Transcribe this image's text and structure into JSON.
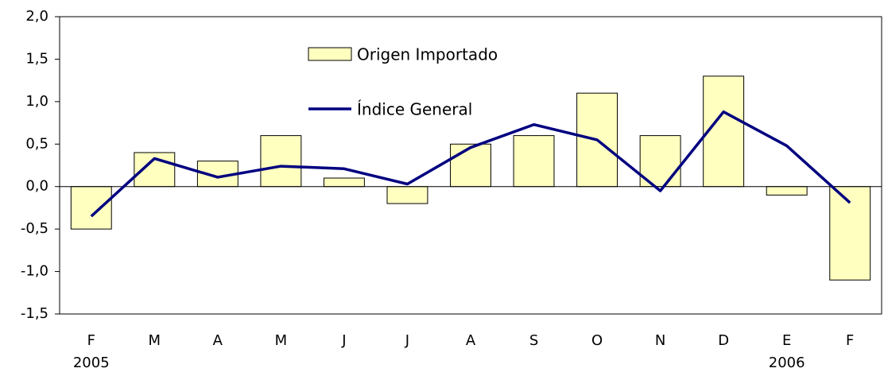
{
  "chart_data": {
    "type": "bar",
    "categories": [
      "F",
      "M",
      "A",
      "M",
      "J",
      "J",
      "A",
      "S",
      "O",
      "N",
      "D",
      "E",
      "F"
    ],
    "categories_level2": [
      "2005",
      null,
      null,
      null,
      null,
      null,
      null,
      null,
      null,
      null,
      null,
      "2006",
      null
    ],
    "series": [
      {
        "name": "Origen Importado",
        "type": "bar",
        "color": "#ffffc0",
        "values": [
          -0.5,
          0.4,
          0.3,
          0.6,
          0.1,
          -0.2,
          0.5,
          0.6,
          1.1,
          0.6,
          1.3,
          -0.1,
          -1.1
        ]
      },
      {
        "name": "Índice General",
        "type": "line",
        "color": "#000080",
        "values": [
          -0.35,
          0.33,
          0.11,
          0.24,
          0.21,
          0.03,
          0.46,
          0.73,
          0.55,
          -0.05,
          0.88,
          0.48,
          -0.19
        ]
      }
    ],
    "ylim": [
      -1.5,
      2.0
    ],
    "yticks": [
      {
        "value": -1.5,
        "label": "-1,5"
      },
      {
        "value": -1.0,
        "label": "-1,0"
      },
      {
        "value": -0.5,
        "label": "-0,5"
      },
      {
        "value": 0,
        "label": "0,0"
      },
      {
        "value": 0.5,
        "label": "0,5"
      },
      {
        "value": 1.0,
        "label": "1,0"
      },
      {
        "value": 1.5,
        "label": "1,5"
      },
      {
        "value": 2.0,
        "label": "2,0"
      }
    ],
    "grid": false
  }
}
